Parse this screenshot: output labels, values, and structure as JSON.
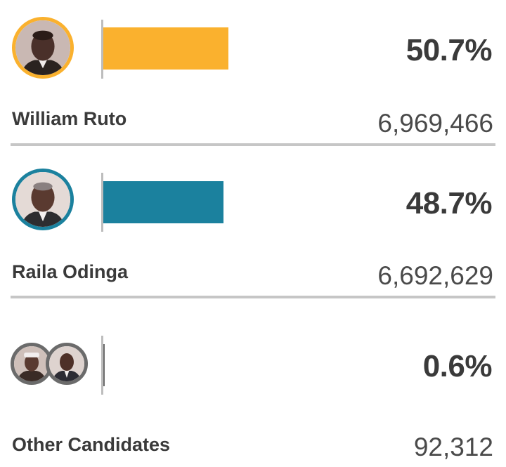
{
  "candidates": [
    {
      "name": "William Ruto",
      "percent_label": "50.7%",
      "votes_label": "6,969,466",
      "percent": 50.7,
      "color": "#FAB12E",
      "icon": "candidate-portrait-icon"
    },
    {
      "name": "Raila Odinga",
      "percent_label": "48.7%",
      "votes_label": "6,692,629",
      "percent": 48.7,
      "color": "#1B819E",
      "icon": "candidate-portrait-icon"
    },
    {
      "name": "Other Candidates",
      "percent_label": "0.6%",
      "votes_label": "92,312",
      "percent": 0.6,
      "color": "#6b6b6b",
      "icon": "group-portrait-icon"
    }
  ],
  "chart_data": {
    "type": "bar",
    "categories": [
      "William Ruto",
      "Raila Odinga",
      "Other Candidates"
    ],
    "values": [
      50.7,
      48.7,
      0.6
    ],
    "votes": [
      6969466,
      6692629,
      92312
    ],
    "unit": "%",
    "colors": [
      "#FAB12E",
      "#1B819E",
      "#6b6b6b"
    ],
    "grid": false,
    "legend": "none"
  }
}
